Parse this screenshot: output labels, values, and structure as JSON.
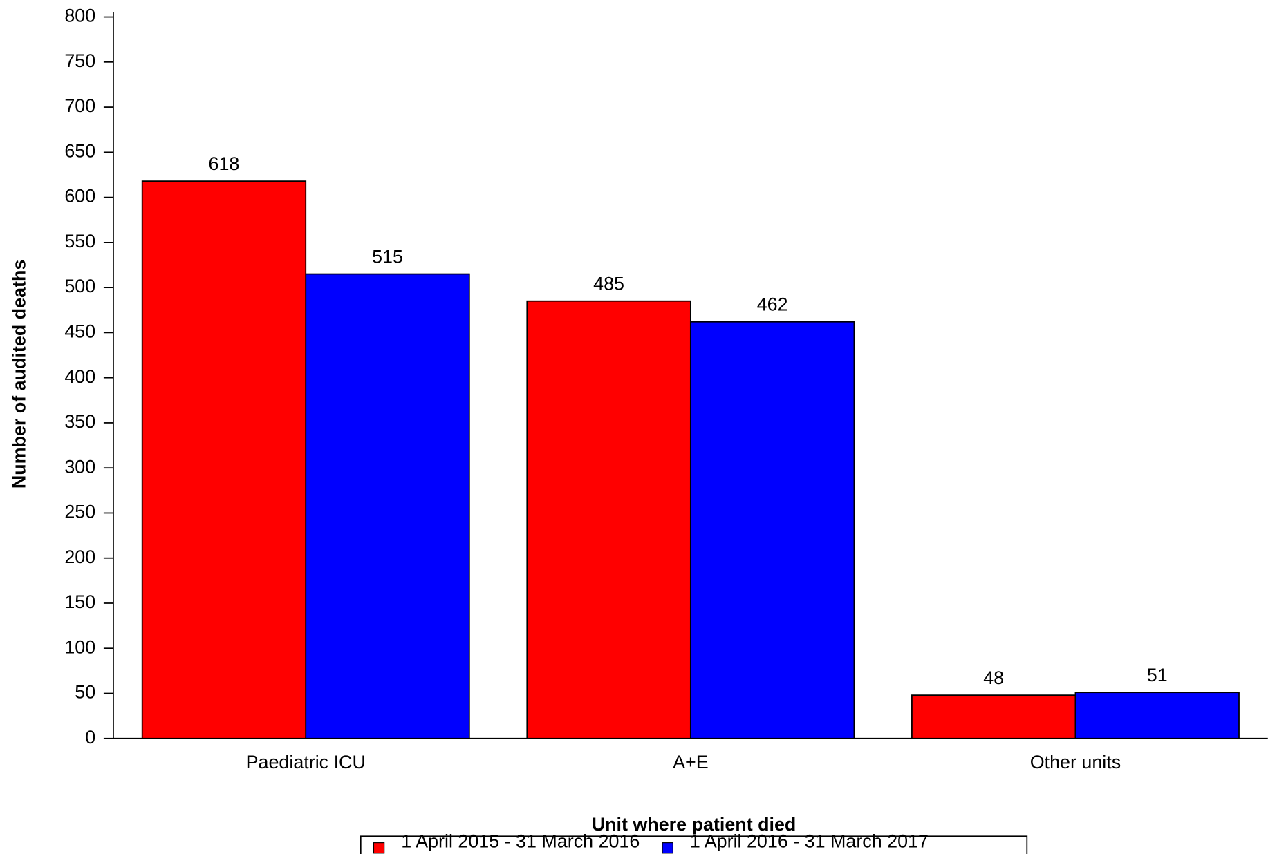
{
  "chart_data": {
    "type": "bar",
    "x_label": "Unit where patient died",
    "y_label": "Number of audited deaths",
    "categories": [
      "Paediatric ICU",
      "A+E",
      "Other units"
    ],
    "series": [
      {
        "name": "1 April 2015 - 31 March 2016",
        "color": "#ff0000",
        "values": [
          618,
          485,
          48
        ]
      },
      {
        "name": "1 April 2016 - 31 March 2017",
        "color": "#0000ff",
        "values": [
          515,
          462,
          51
        ]
      }
    ],
    "ylim": [
      0,
      800
    ],
    "yticks": [
      0,
      50,
      100,
      150,
      200,
      250,
      300,
      350,
      400,
      450,
      500,
      550,
      600,
      650,
      700,
      750,
      800
    ],
    "legend": "bottom"
  }
}
